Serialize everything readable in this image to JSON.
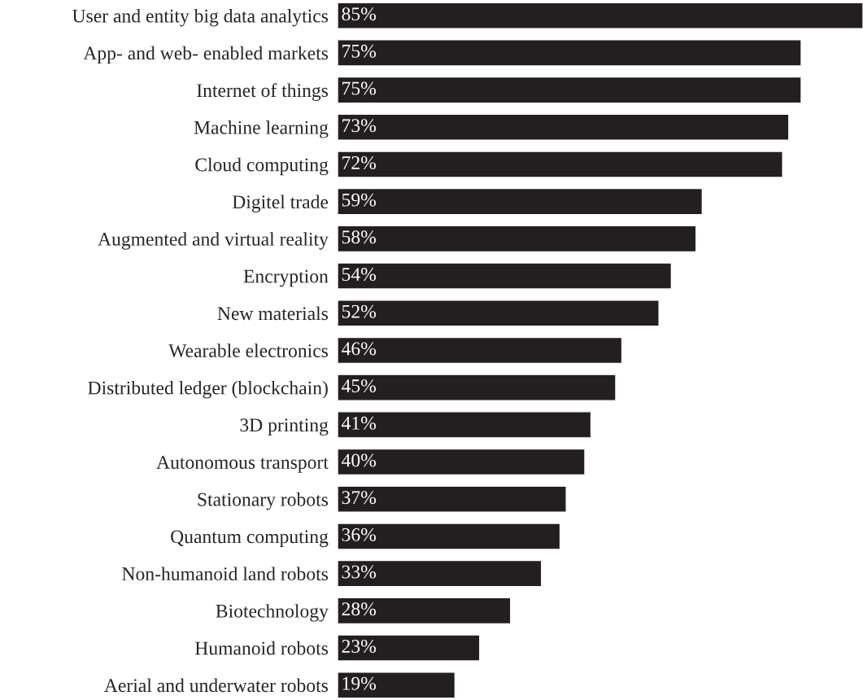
{
  "chart_data": {
    "type": "bar",
    "orientation": "horizontal",
    "categories": [
      "User and entity big data analytics",
      "App- and web- enabled markets",
      "Internet of things",
      "Machine learning",
      "Cloud computing",
      "Digitel trade",
      "Augmented and virtual reality",
      "Encryption",
      "New materials",
      "Wearable electronics",
      "Distributed ledger (blockchain)",
      "3D printing",
      "Autonomous transport",
      "Stationary robots",
      "Quantum computing",
      "Non-humanoid land robots",
      "Biotechnology",
      "Humanoid robots",
      "Aerial and underwater robots"
    ],
    "values": [
      85,
      75,
      75,
      73,
      72,
      59,
      58,
      54,
      52,
      46,
      45,
      41,
      40,
      37,
      36,
      33,
      28,
      23,
      19
    ],
    "value_labels": [
      "85%",
      "75%",
      "75%",
      "73%",
      "72%",
      "59%",
      "58%",
      "54%",
      "52%",
      "46%",
      "45%",
      "41%",
      "40%",
      "37%",
      "36%",
      "33%",
      "28%",
      "23%",
      "19%"
    ],
    "color": "#231f20",
    "grid": false,
    "legend": false
  }
}
